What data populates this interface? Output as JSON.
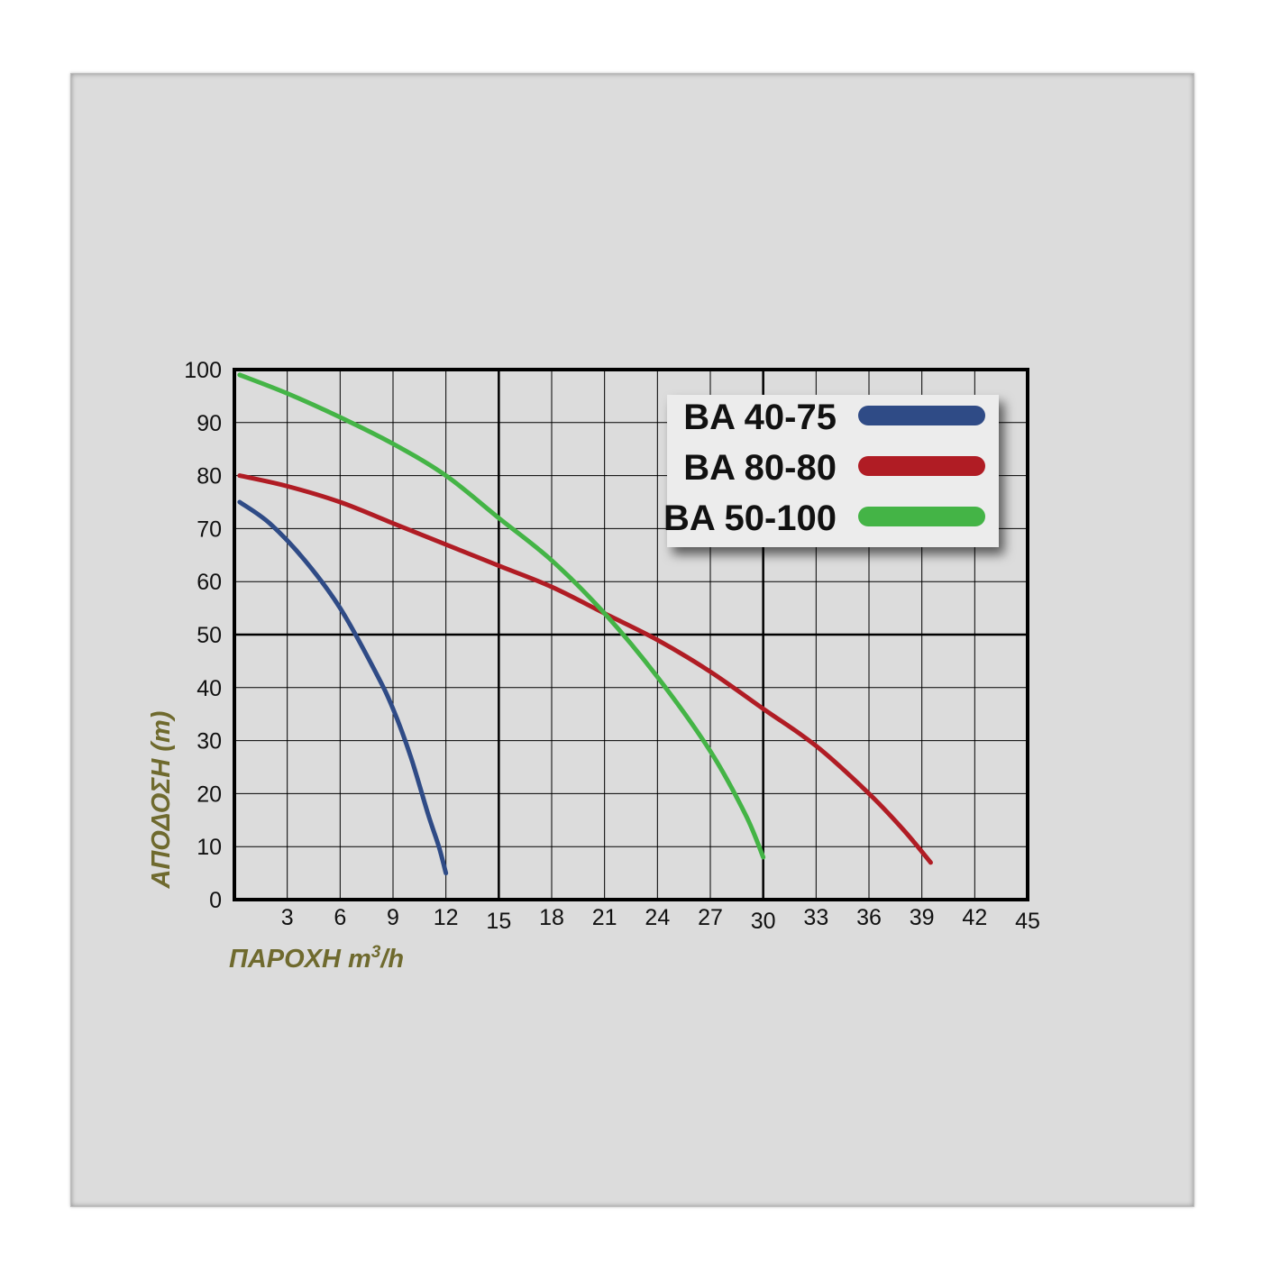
{
  "chart_data": {
    "type": "line",
    "xlabel": "ΠΑΡΟΧΗ m",
    "xlabel_sup": "3",
    "xlabel_tail": "/h",
    "ylabel": "ΑΠΟΔΟΣΗ (m)",
    "xlim": [
      0,
      45
    ],
    "ylim": [
      0,
      100
    ],
    "x_ticks": [
      "3",
      "6",
      "9",
      "12",
      "15",
      "18",
      "21",
      "24",
      "27",
      "30",
      "33",
      "36",
      "39",
      "42",
      "45"
    ],
    "y_ticks": [
      "0",
      "10",
      "20",
      "30",
      "40",
      "50",
      "60",
      "70",
      "80",
      "90",
      "100"
    ],
    "major_x": [
      15,
      30
    ],
    "major_y": [
      50
    ],
    "grid": true,
    "legend_position": "top-right",
    "series": [
      {
        "name": "BA 40-75",
        "color": "#2f4b86",
        "x": [
          0.3,
          2,
          4,
          6,
          8,
          9,
          10,
          11,
          11.6,
          12
        ],
        "y": [
          75,
          71,
          64,
          55,
          43,
          36,
          27,
          16,
          10,
          5
        ]
      },
      {
        "name": "BA 80-80",
        "color": "#b01c24",
        "x": [
          0.3,
          3,
          6,
          9,
          12,
          15,
          18,
          21,
          24,
          27,
          30,
          33,
          36,
          38,
          39.5
        ],
        "y": [
          80,
          78,
          75,
          71,
          67,
          63,
          59,
          54,
          49,
          43,
          36,
          29,
          20,
          13,
          7
        ]
      },
      {
        "name": "BA 50-100",
        "color": "#44b446",
        "x": [
          0.3,
          3,
          6,
          9,
          12,
          15,
          18,
          21,
          24,
          27,
          29,
          30
        ],
        "y": [
          99,
          95.5,
          91,
          86,
          80,
          72,
          64,
          54,
          42,
          28,
          16,
          8
        ]
      }
    ]
  }
}
